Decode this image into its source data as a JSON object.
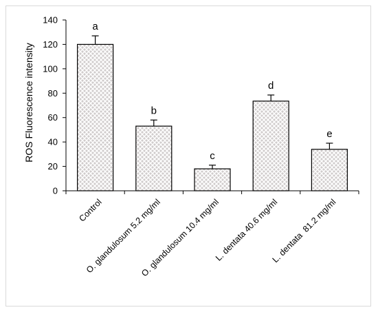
{
  "chart_data": {
    "type": "bar",
    "title": "",
    "xlabel": "",
    "ylabel": "ROS Fluorescence intensity",
    "ylim": [
      0,
      140
    ],
    "yticks": [
      0,
      20,
      40,
      60,
      80,
      100,
      120,
      140
    ],
    "grid": false,
    "legend": "none",
    "bar_pattern": "crosshatch",
    "colors": {
      "bar_fill": "#d0cccc",
      "bar_hatch": "#ffffff",
      "bar_stroke": "#000000",
      "axis": "#000000"
    },
    "categories": [
      "Control",
      "O. glandulosum 5.2 mg/ml",
      "O. glandulosum 10.4 mg/ml",
      "L. dentata 40.6 mg/ml",
      "L. dentata  81.2 mg/ml"
    ],
    "values": [
      120,
      53,
      18,
      73.5,
      34
    ],
    "errors": [
      7,
      5,
      3,
      5,
      5
    ],
    "significance_letters": [
      "a",
      "b",
      "c",
      "d",
      "e"
    ]
  }
}
